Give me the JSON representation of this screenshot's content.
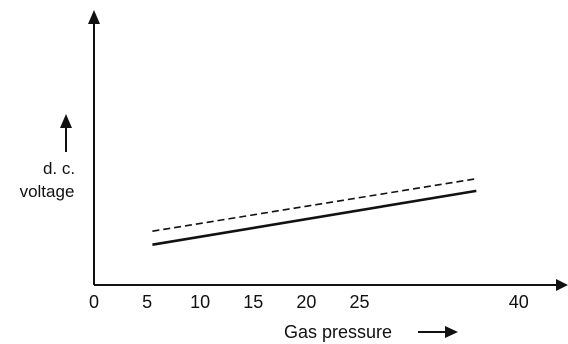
{
  "chart_data": {
    "type": "line",
    "title": "",
    "xlabel": "Gas pressure",
    "ylabel_lines": [
      "d. c.",
      "voltage"
    ],
    "xlim": [
      0,
      44
    ],
    "ticks": [
      {
        "label": "0",
        "x": 0
      },
      {
        "label": "5",
        "x": 5
      },
      {
        "label": "10",
        "x": 10
      },
      {
        "label": "15",
        "x": 15
      },
      {
        "label": "20",
        "x": 20
      },
      {
        "label": "25",
        "x": 25
      },
      {
        "label": "40",
        "x": 40
      }
    ],
    "y_ticks": [],
    "grid": false,
    "series": [
      {
        "style": "solid",
        "x": [
          5.5,
          36
        ],
        "y": [
          0.15,
          0.35
        ]
      },
      {
        "style": "dashed",
        "x": [
          5.5,
          36
        ],
        "y": [
          0.2,
          0.395
        ]
      }
    ],
    "ylim": [
      0,
      1
    ],
    "colors": {
      "axis": "#111111",
      "line": "#111111"
    }
  }
}
